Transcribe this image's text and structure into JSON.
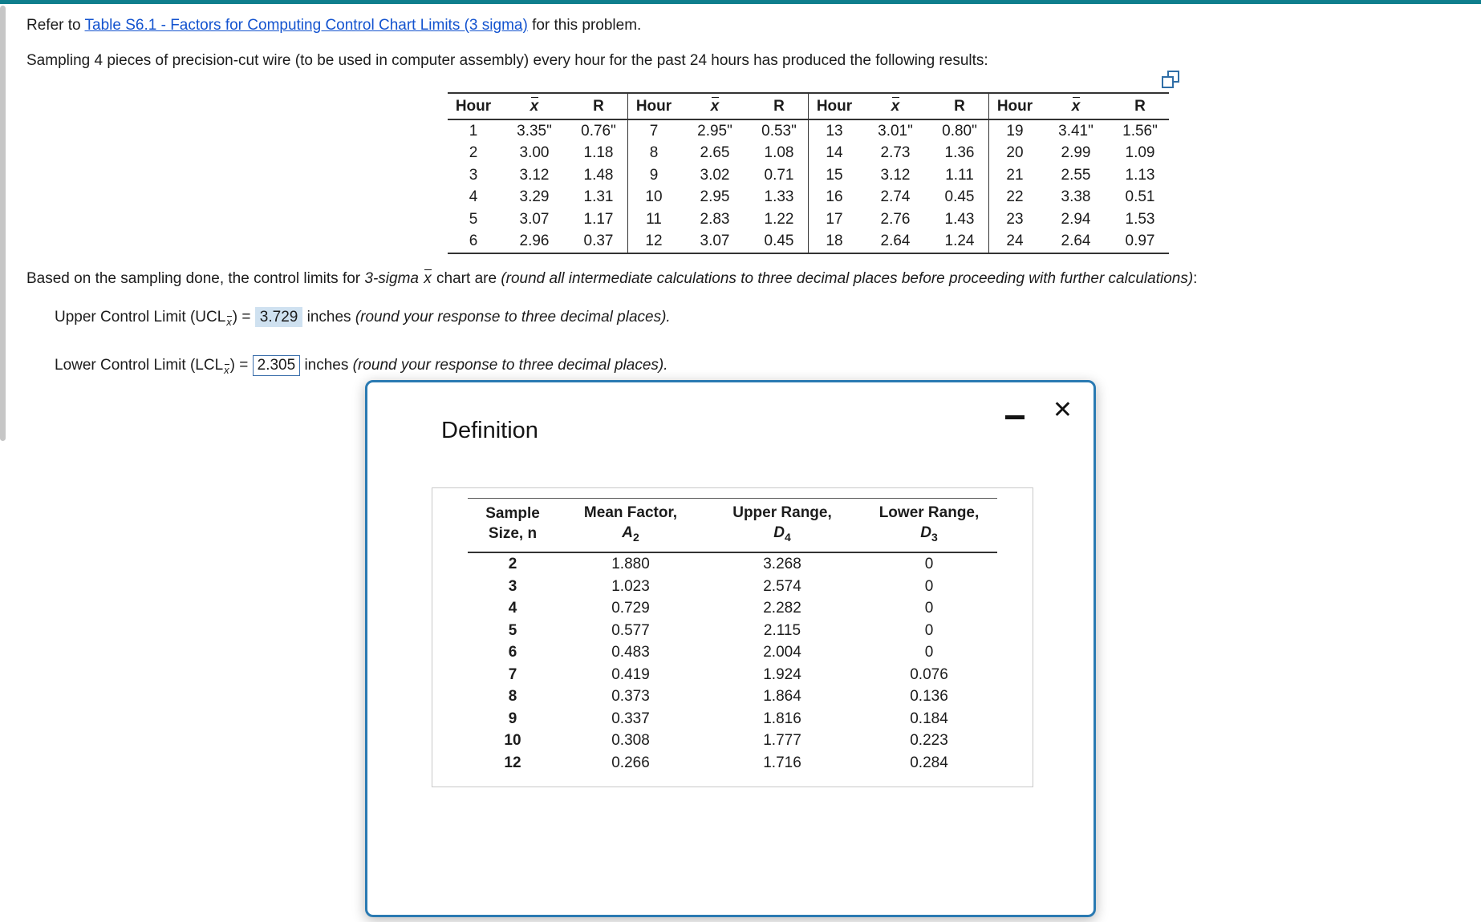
{
  "page": {
    "refer_prefix": "Refer to ",
    "refer_link": "Table S6.1 - Factors for Computing Control Chart Limits (3 sigma)",
    "refer_suffix": " for this problem.",
    "sampling_line": "Sampling 4 pieces of precision-cut wire (to be used in computer assembly) every hour for the past 24 hours has produced the following results:",
    "based_prefix": "Based on the sampling done, the control limits for ",
    "based_sigma": "3-sigma ",
    "xbar_symbol": "x",
    "based_mid": " chart are ",
    "based_note": "(round all intermediate calculations to three decimal places before proceeding with further calculations)",
    "based_colon": ":"
  },
  "answers": {
    "ucl_label": "Upper Control Limit (UCL",
    "lcl_label": "Lower Control Limit (LCL",
    "label_close": ") = ",
    "ucl_value": "3.729",
    "lcl_value": "2.305",
    "units": " inches ",
    "round_note": "(round your response to three decimal places)."
  },
  "results_table": {
    "col_headers": [
      "Hour",
      "x",
      "R"
    ],
    "groups": [
      [
        [
          "1",
          "3.35\"",
          "0.76\""
        ],
        [
          "2",
          "3.00",
          "1.18"
        ],
        [
          "3",
          "3.12",
          "1.48"
        ],
        [
          "4",
          "3.29",
          "1.31"
        ],
        [
          "5",
          "3.07",
          "1.17"
        ],
        [
          "6",
          "2.96",
          "0.37"
        ]
      ],
      [
        [
          "7",
          "2.95\"",
          "0.53\""
        ],
        [
          "8",
          "2.65",
          "1.08"
        ],
        [
          "9",
          "3.02",
          "0.71"
        ],
        [
          "10",
          "2.95",
          "1.33"
        ],
        [
          "11",
          "2.83",
          "1.22"
        ],
        [
          "12",
          "3.07",
          "0.45"
        ]
      ],
      [
        [
          "13",
          "3.01\"",
          "0.80\""
        ],
        [
          "14",
          "2.73",
          "1.36"
        ],
        [
          "15",
          "3.12",
          "1.11"
        ],
        [
          "16",
          "2.74",
          "0.45"
        ],
        [
          "17",
          "2.76",
          "1.43"
        ],
        [
          "18",
          "2.64",
          "1.24"
        ]
      ],
      [
        [
          "19",
          "3.41\"",
          "1.56\""
        ],
        [
          "20",
          "2.99",
          "1.09"
        ],
        [
          "21",
          "2.55",
          "1.13"
        ],
        [
          "22",
          "3.38",
          "0.51"
        ],
        [
          "23",
          "2.94",
          "1.53"
        ],
        [
          "24",
          "2.64",
          "0.97"
        ]
      ]
    ]
  },
  "modal": {
    "title": "Definition",
    "close_glyph": "✕",
    "table": {
      "headers": [
        {
          "line1": "Sample",
          "line2": "Size, n"
        },
        {
          "line1": "Mean Factor,",
          "sym": "A",
          "sub": "2"
        },
        {
          "line1": "Upper Range,",
          "sym": "D",
          "sub": "4"
        },
        {
          "line1": "Lower Range,",
          "sym": "D",
          "sub": "3"
        }
      ],
      "rows": [
        [
          "2",
          "1.880",
          "3.268",
          "0"
        ],
        [
          "3",
          "1.023",
          "2.574",
          "0"
        ],
        [
          "4",
          "0.729",
          "2.282",
          "0"
        ],
        [
          "5",
          "0.577",
          "2.115",
          "0"
        ],
        [
          "6",
          "0.483",
          "2.004",
          "0"
        ],
        [
          "7",
          "0.419",
          "1.924",
          "0.076"
        ],
        [
          "8",
          "0.373",
          "1.864",
          "0.136"
        ],
        [
          "9",
          "0.337",
          "1.816",
          "0.184"
        ],
        [
          "10",
          "0.308",
          "1.777",
          "0.223"
        ],
        [
          "12",
          "0.266",
          "1.716",
          "0.284"
        ]
      ]
    }
  }
}
